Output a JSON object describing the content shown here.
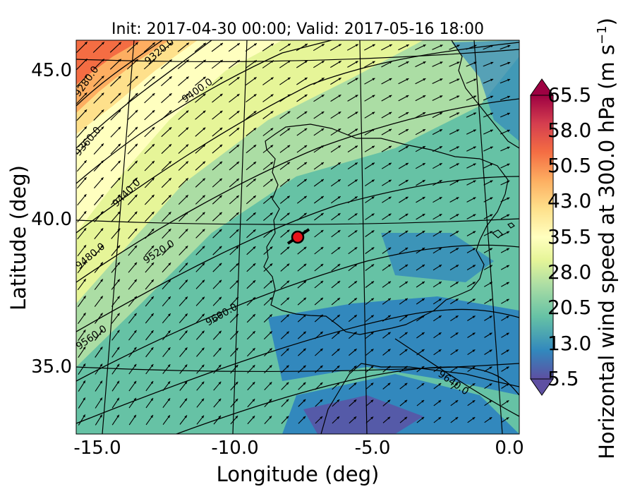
{
  "figure": {
    "title": "Init: 2017-04-30 00:00; Valid: 2017-05-16 18:00",
    "xlabel": "Longitude (deg)",
    "ylabel": "Latitude (deg)",
    "x_ticks": [
      "-15.0",
      "-10.0",
      "-5.0",
      "0.0"
    ],
    "y_ticks": [
      "45.0",
      "40.0",
      "35.0"
    ],
    "colorbar_label_main": "Horizontal wind speed at 300.0 hPa (m s",
    "colorbar_label_exp": "−1",
    "colorbar_label_close": ")",
    "colorbar_ticks": [
      "65.5",
      "58.0",
      "50.5",
      "43.0",
      "35.5",
      "28.0",
      "20.5",
      "13.0",
      "5.5"
    ],
    "contour_labels": [
      "9280.0",
      "9320.0",
      "9360.0",
      "9400.0",
      "9440.0",
      "9480.0",
      "9520.0",
      "9560.0",
      "9600.0",
      "9640.0"
    ]
  },
  "map_data": {
    "lon_range": [
      -16,
      0.3
    ],
    "lat_range": [
      32.8,
      46
    ],
    "colorbar_range": [
      5.5,
      65.5
    ],
    "colormap": [
      "#5e4fa2",
      "#3288bd",
      "#66c2a5",
      "#abdda4",
      "#e6f598",
      "#ffffbf",
      "#fee08b",
      "#fdae61",
      "#f46d43",
      "#d53e4f",
      "#9e0142"
    ],
    "marker": {
      "lon": -7.7,
      "lat": 39.4,
      "color": "#e8141b"
    }
  }
}
